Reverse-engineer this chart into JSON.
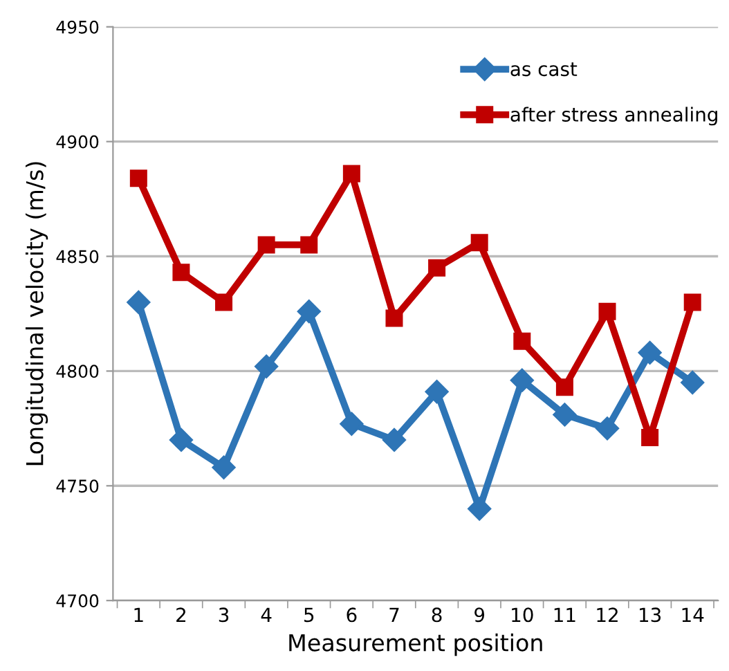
{
  "chart_data": {
    "type": "line",
    "xlabel": "Measurement position",
    "ylabel": "Longitudinal velocity (m/s)",
    "categories": [
      "1",
      "2",
      "3",
      "4",
      "5",
      "6",
      "7",
      "8",
      "9",
      "10",
      "11",
      "12",
      "13",
      "14"
    ],
    "series": [
      {
        "name": "as cast",
        "color": "#2e75b6",
        "marker": "diamond",
        "values": [
          4830,
          4770,
          4758,
          4802,
          4826,
          4777,
          4770,
          4791,
          4740,
          4796,
          4781,
          4775,
          4808,
          4795
        ]
      },
      {
        "name": "after stress annealing",
        "color": "#c00000",
        "marker": "square",
        "values": [
          4884,
          4843,
          4830,
          4855,
          4855,
          4886,
          4823,
          4845,
          4856,
          4813,
          4793,
          4826,
          4771,
          4830
        ]
      }
    ],
    "ylim": [
      4700,
      4950
    ],
    "yticks": [
      4700,
      4750,
      4800,
      4850,
      4900,
      4950
    ],
    "grid": "y",
    "legend": "top right",
    "line_style": "solid"
  }
}
